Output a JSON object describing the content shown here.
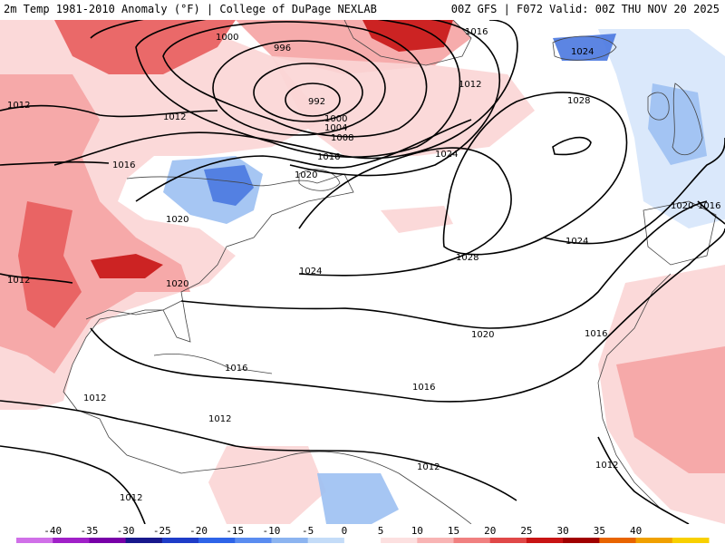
{
  "header": {
    "left_title": "2m Temp 1981-2010 Anomaly (°F) | College of DuPage NEXLAB",
    "right_title": "00Z GFS | F072 Valid: 00Z THU NOV 20 2025"
  },
  "isobar_labels": [
    "1000",
    "996",
    "992",
    "1000",
    "1004",
    "1008",
    "1012",
    "1012",
    "1012",
    "1016",
    "1016",
    "1016",
    "1020",
    "1020",
    "1020",
    "1024",
    "1024",
    "1024",
    "1028",
    "1028",
    "1024",
    "1016",
    "1016",
    "1020",
    "1016",
    "1012",
    "1012",
    "1012",
    "1020",
    "1012",
    "1016",
    "1012",
    "1012"
  ],
  "colorbar": {
    "ticks": [
      "-40",
      "-35",
      "-30",
      "-25",
      "-20",
      "-15",
      "-10",
      "-5",
      "0",
      "5",
      "10",
      "15",
      "20",
      "25",
      "30",
      "35",
      "40"
    ],
    "colors": [
      "#d070e8",
      "#a020c8",
      "#7800a8",
      "#18188c",
      "#1e3cc8",
      "#2e64e8",
      "#5a8cf0",
      "#8cb4f0",
      "#c4dcf8",
      "#ffffff",
      "#fce0e0",
      "#f8b4b4",
      "#f08080",
      "#e04848",
      "#c81414",
      "#a00000",
      "#e86400",
      "#f0a000",
      "#f8d000"
    ]
  },
  "colors": {
    "warm_light": "#fbd5d5",
    "warm_mid": "#f5a3a3",
    "warm_strong": "#e85c5c",
    "warm_extreme": "#c81414",
    "cool_light": "#d6e6fb",
    "cool_mid": "#9cc0f2",
    "cool_strong": "#4a78e0"
  }
}
